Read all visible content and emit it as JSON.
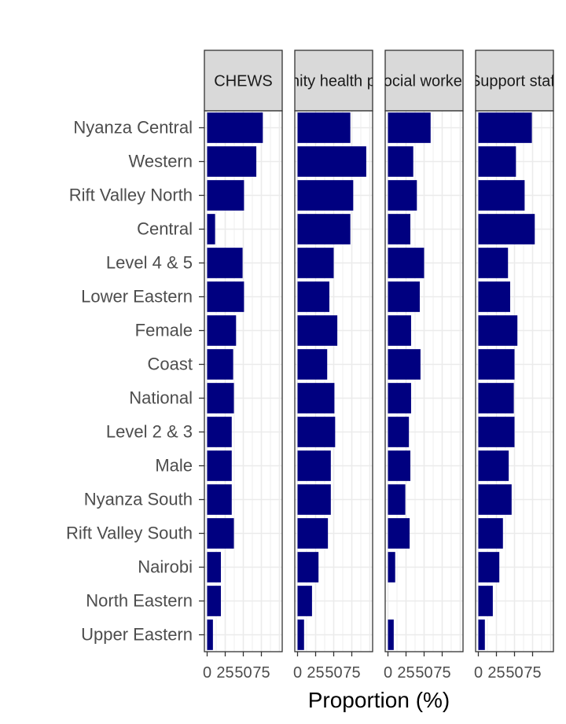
{
  "chart_data": {
    "type": "bar",
    "orientation": "horizontal",
    "facets": [
      "CHEWS",
      "Community health providers",
      "Social workers",
      "Support staff"
    ],
    "categories": [
      "Nyanza Central",
      "Western",
      "Rift Valley North",
      "Central",
      "Level 4 & 5",
      "Lower Eastern",
      "Female",
      "Coast",
      "National",
      "Level 2 & 3",
      "Male",
      "Nyanza South",
      "Rift Valley South",
      "Nairobi",
      "North Eastern",
      "Upper Eastern"
    ],
    "series": [
      {
        "facet": "CHEWS",
        "values": [
          77,
          68,
          51,
          11,
          49,
          51,
          40,
          36,
          37,
          34,
          34,
          34,
          37,
          19,
          19,
          8
        ]
      },
      {
        "facet": "Community health providers",
        "values": [
          73,
          95,
          77,
          73,
          50,
          44,
          55,
          41,
          51,
          52,
          46,
          46,
          42,
          29,
          20,
          9
        ]
      },
      {
        "facet": "Social workers",
        "values": [
          59,
          35,
          40,
          31,
          50,
          44,
          32,
          45,
          32,
          29,
          31,
          24,
          30,
          10,
          0,
          8
        ]
      },
      {
        "facet": "Support staff",
        "values": [
          74,
          52,
          64,
          78,
          41,
          44,
          54,
          50,
          49,
          50,
          42,
          46,
          34,
          29,
          20,
          9
        ]
      }
    ],
    "xlim": [
      0,
      100
    ],
    "xticks": [
      0,
      25,
      50,
      75
    ],
    "xtick_labels": [
      "0",
      "25",
      "50",
      "75"
    ],
    "xlabel": "Proportion (%)",
    "ylabel": "",
    "grid": true,
    "bar_color": "#000080"
  }
}
